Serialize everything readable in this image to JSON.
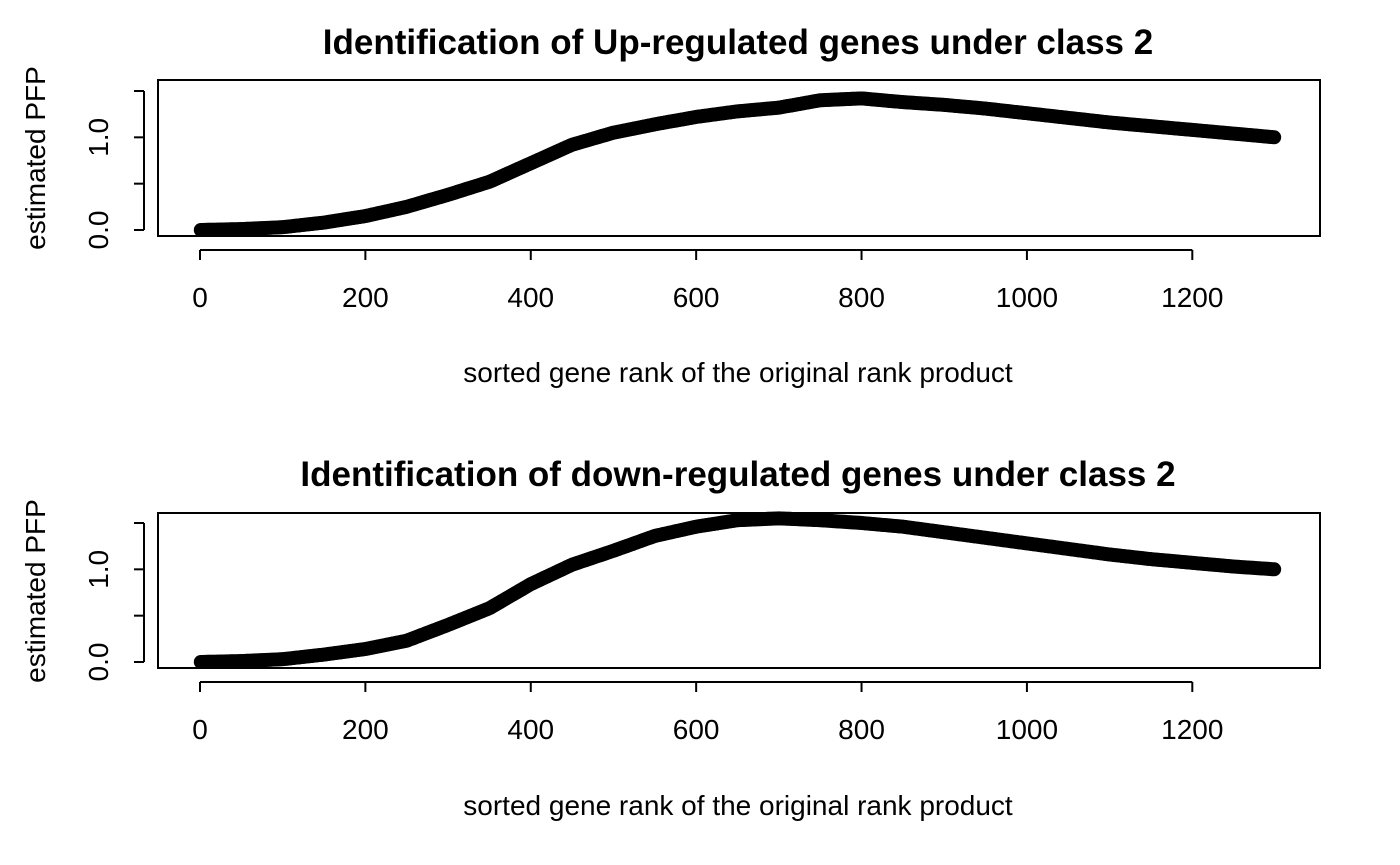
{
  "chart_data": [
    {
      "type": "scatter",
      "title": "Identification of Up-regulated genes under class 2",
      "xlabel": "sorted gene rank of the original rank product",
      "ylabel": "estimated PFP",
      "xlim": [
        0,
        1300
      ],
      "ylim": [
        0,
        1.5
      ],
      "xticks": [
        "0",
        "200",
        "400",
        "600",
        "800",
        "1000",
        "1200"
      ],
      "yticks": [
        "0.0",
        "1.0"
      ],
      "grid": false,
      "color": "#000000",
      "series": [
        {
          "x": [
            1,
            50,
            100,
            150,
            200,
            250,
            300,
            350,
            400,
            450,
            500,
            550,
            600,
            650,
            700,
            750,
            800,
            850,
            900,
            950,
            1000,
            1050,
            1100,
            1150,
            1200,
            1250,
            1300
          ],
          "y": [
            0.0,
            0.01,
            0.03,
            0.08,
            0.15,
            0.25,
            0.38,
            0.52,
            0.72,
            0.92,
            1.05,
            1.14,
            1.22,
            1.28,
            1.32,
            1.4,
            1.42,
            1.38,
            1.35,
            1.31,
            1.26,
            1.21,
            1.16,
            1.12,
            1.08,
            1.04,
            1.0
          ]
        }
      ]
    },
    {
      "type": "scatter",
      "title": "Identification of down-regulated genes under class 2",
      "xlabel": "sorted gene rank of the original rank product",
      "ylabel": "estimated PFP",
      "xlim": [
        0,
        1300
      ],
      "ylim": [
        0,
        1.5
      ],
      "xticks": [
        "0",
        "200",
        "400",
        "600",
        "800",
        "1000",
        "1200"
      ],
      "yticks": [
        "0.0",
        "1.0"
      ],
      "grid": false,
      "color": "#000000",
      "series": [
        {
          "x": [
            1,
            50,
            100,
            150,
            200,
            250,
            300,
            350,
            400,
            450,
            500,
            550,
            600,
            650,
            700,
            750,
            800,
            850,
            900,
            950,
            1000,
            1050,
            1100,
            1150,
            1200,
            1250,
            1300
          ],
          "y": [
            0.0,
            0.01,
            0.03,
            0.08,
            0.14,
            0.23,
            0.4,
            0.58,
            0.84,
            1.05,
            1.2,
            1.36,
            1.46,
            1.53,
            1.55,
            1.53,
            1.5,
            1.46,
            1.4,
            1.34,
            1.28,
            1.22,
            1.16,
            1.11,
            1.07,
            1.03,
            1.0
          ]
        }
      ]
    }
  ]
}
